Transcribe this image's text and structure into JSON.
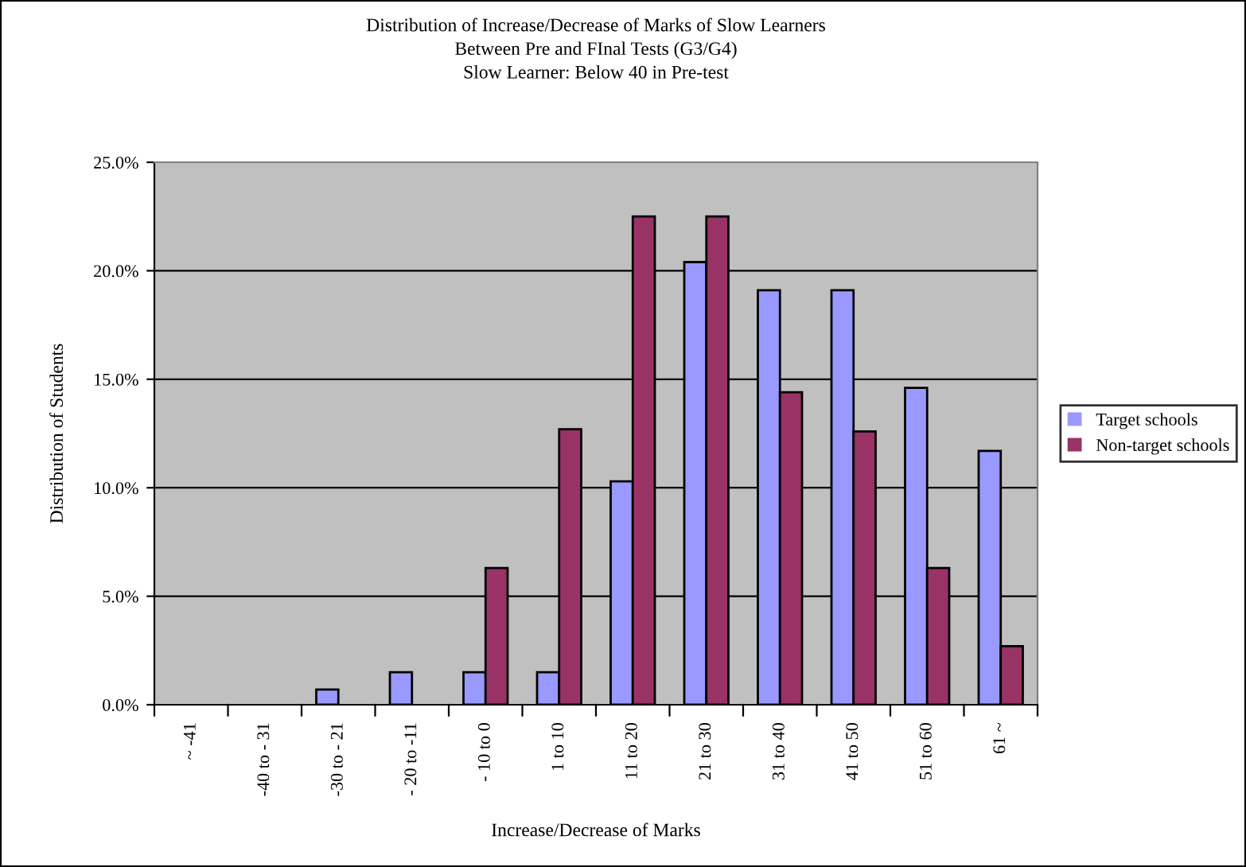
{
  "chart_data": {
    "type": "bar",
    "title": "Distribution of Increase/Decrease of Marks of Slow Learners\nBetween Pre and FInal Tests (G3/G4)\nSlow Learner: Below 40 in Pre-test",
    "xlabel": "Increase/Decrease of Marks",
    "ylabel": "Distribution of Students",
    "categories": [
      "~ -41",
      "-40 to - 31",
      "-30 to - 21",
      "- 20 to -11",
      "- 10 to 0",
      "1 to 10",
      "11 to 20",
      "21 to 30",
      "31 to 40",
      "41 to 50",
      "51 to 60",
      "61 ~"
    ],
    "series": [
      {
        "name": "Target schools",
        "color": "#9999ff",
        "values": [
          0,
          0,
          0.7,
          1.5,
          1.5,
          1.5,
          10.3,
          20.4,
          19.1,
          19.1,
          14.6,
          11.7
        ]
      },
      {
        "name": "Non-target schools",
        "color": "#993366",
        "values": [
          0,
          0,
          0,
          0,
          6.3,
          12.7,
          22.5,
          22.5,
          14.4,
          12.6,
          6.3,
          2.7
        ]
      }
    ],
    "ylim": [
      0,
      25
    ],
    "yticks": [
      {
        "value": 0,
        "label": "0.0%"
      },
      {
        "value": 5,
        "label": "5.0%"
      },
      {
        "value": 10,
        "label": "10.0%"
      },
      {
        "value": 15,
        "label": "15.0%"
      },
      {
        "value": 20,
        "label": "20.0%"
      },
      {
        "value": 25,
        "label": "25.0%"
      }
    ],
    "grid": "y",
    "legend": "right"
  }
}
